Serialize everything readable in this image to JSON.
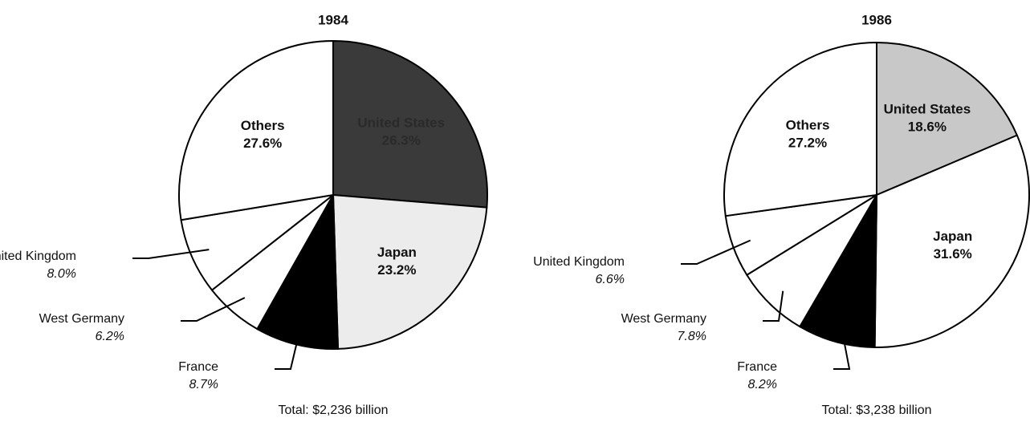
{
  "chart_data": [
    {
      "type": "pie",
      "title": "1984",
      "categories": [
        "United States",
        "Japan",
        "France",
        "West Germany",
        "United Kingdom",
        "Others"
      ],
      "values": [
        26.3,
        23.2,
        8.7,
        6.2,
        8.0,
        27.6
      ],
      "value_labels": [
        "26.3%",
        "23.2%",
        "8.7%",
        "6.2%",
        "8.0%",
        "27.6%"
      ],
      "colors": [
        "#3a3a3a",
        "#ececec",
        "#000000",
        "#ffffff",
        "#ffffff",
        "#ffffff"
      ],
      "annotation": "Total: $2,236 billion"
    },
    {
      "type": "pie",
      "title": "1986",
      "categories": [
        "United States",
        "Japan",
        "France",
        "West Germany",
        "United Kingdom",
        "Others"
      ],
      "values": [
        18.6,
        31.6,
        8.2,
        7.8,
        6.6,
        27.2
      ],
      "value_labels": [
        "18.6%",
        "31.6%",
        "8.2%",
        "7.8%",
        "6.6%",
        "27.2%"
      ],
      "colors": [
        "#c8c8c8",
        "#ffffff",
        "#000000",
        "#ffffff",
        "#ffffff",
        "#ffffff"
      ],
      "annotation": "Total: $3,238 billion"
    }
  ]
}
